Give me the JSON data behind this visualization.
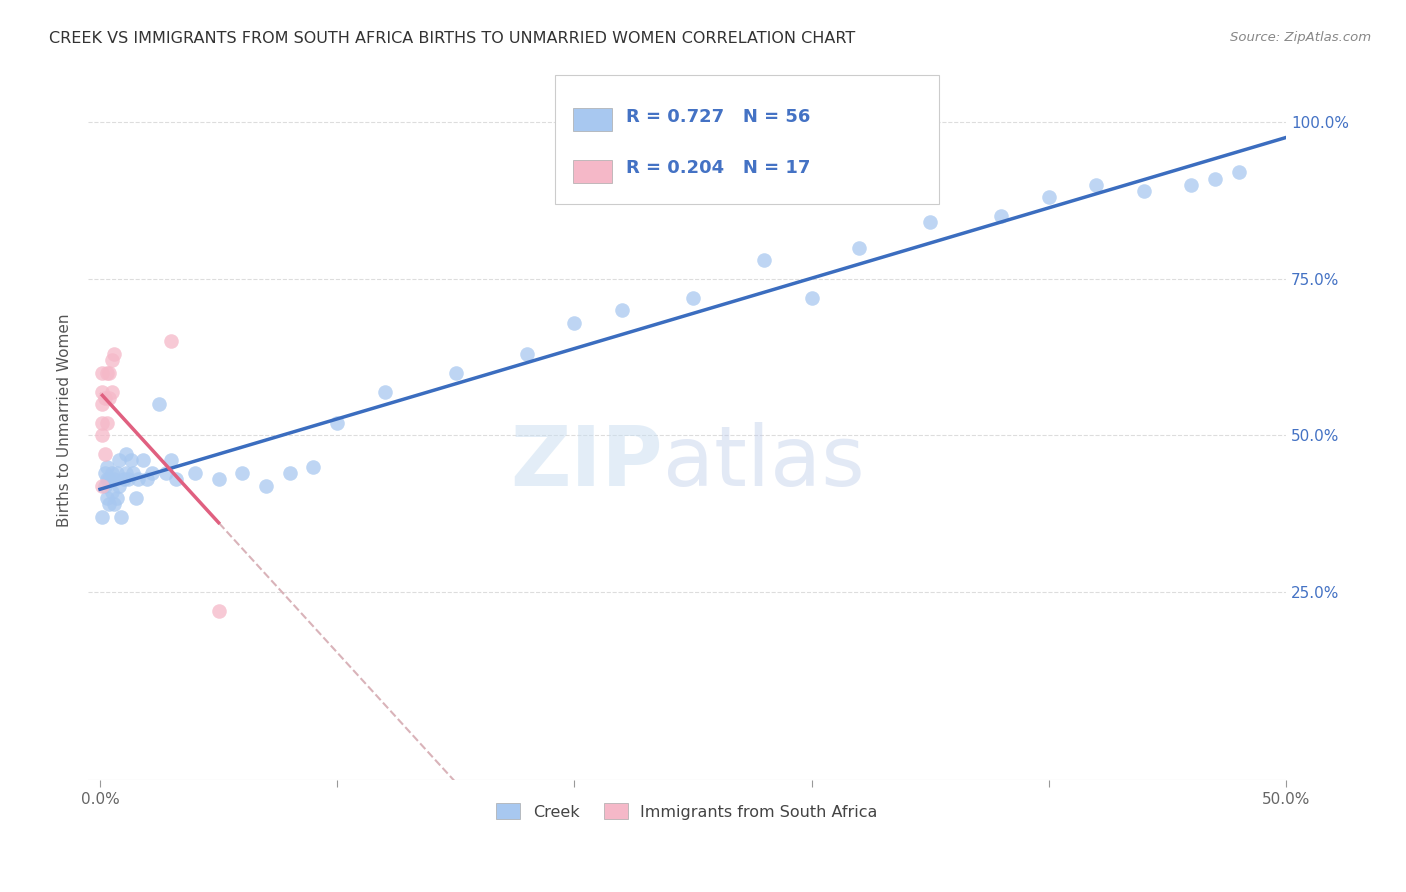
{
  "title": "CREEK VS IMMIGRANTS FROM SOUTH AFRICA BIRTHS TO UNMARRIED WOMEN CORRELATION CHART",
  "source": "Source: ZipAtlas.com",
  "ylabel": "Births to Unmarried Women",
  "ytick_labels": [
    "25.0%",
    "50.0%",
    "75.0%",
    "100.0%"
  ],
  "ytick_values": [
    0.25,
    0.5,
    0.75,
    1.0
  ],
  "legend_label1": "Creek",
  "legend_label2": "Immigrants from South Africa",
  "R1": 0.727,
  "N1": 56,
  "R2": 0.204,
  "N2": 17,
  "color_blue": "#a8c8f0",
  "color_pink": "#f5b8c8",
  "color_blue_line": "#3b6dbf",
  "color_pink_line": "#e06080",
  "color_dash": "#d0a0a8",
  "watermark_zip": "ZIP",
  "watermark_atlas": "atlas",
  "creek_x": [
    0.001,
    0.002,
    0.002,
    0.003,
    0.003,
    0.003,
    0.004,
    0.004,
    0.005,
    0.005,
    0.006,
    0.006,
    0.007,
    0.007,
    0.008,
    0.008,
    0.009,
    0.01,
    0.011,
    0.011,
    0.012,
    0.013,
    0.014,
    0.015,
    0.016,
    0.018,
    0.02,
    0.022,
    0.025,
    0.028,
    0.03,
    0.032,
    0.04,
    0.05,
    0.06,
    0.07,
    0.08,
    0.09,
    0.1,
    0.12,
    0.15,
    0.18,
    0.2,
    0.22,
    0.25,
    0.28,
    0.3,
    0.32,
    0.35,
    0.38,
    0.4,
    0.42,
    0.44,
    0.46,
    0.47,
    0.48
  ],
  "creek_y": [
    0.37,
    0.42,
    0.44,
    0.4,
    0.43,
    0.45,
    0.39,
    0.43,
    0.41,
    0.44,
    0.39,
    0.43,
    0.4,
    0.44,
    0.42,
    0.46,
    0.37,
    0.43,
    0.44,
    0.47,
    0.43,
    0.46,
    0.44,
    0.4,
    0.43,
    0.46,
    0.43,
    0.44,
    0.55,
    0.44,
    0.46,
    0.43,
    0.44,
    0.43,
    0.44,
    0.42,
    0.44,
    0.45,
    0.52,
    0.57,
    0.6,
    0.63,
    0.68,
    0.7,
    0.72,
    0.78,
    0.72,
    0.8,
    0.84,
    0.85,
    0.88,
    0.9,
    0.89,
    0.9,
    0.91,
    0.92
  ],
  "sa_x": [
    0.001,
    0.001,
    0.001,
    0.001,
    0.001,
    0.001,
    0.002,
    0.002,
    0.003,
    0.003,
    0.004,
    0.004,
    0.005,
    0.005,
    0.006,
    0.03,
    0.05
  ],
  "sa_y": [
    0.42,
    0.5,
    0.52,
    0.55,
    0.57,
    0.6,
    0.47,
    0.56,
    0.52,
    0.6,
    0.56,
    0.6,
    0.57,
    0.62,
    0.63,
    0.65,
    0.22
  ]
}
